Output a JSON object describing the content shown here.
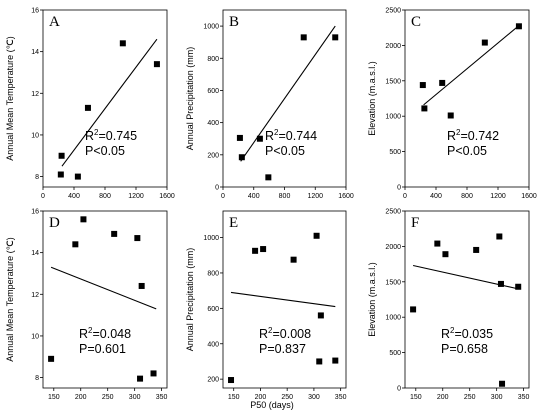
{
  "figure": {
    "xlabel": "P50 (days)"
  },
  "chart_data": [
    {
      "type": "scatter",
      "panel": "A",
      "ylabel": "Annual Mean Temperature (℃)",
      "xlim": [
        0,
        1600
      ],
      "ylim": [
        7.5,
        16
      ],
      "xticks": [
        0,
        400,
        800,
        1200,
        1600
      ],
      "yticks": [
        8,
        10,
        12,
        14,
        16
      ],
      "points": [
        [
          230,
          8.1
        ],
        [
          240,
          9.0
        ],
        [
          450,
          8.0
        ],
        [
          580,
          11.3
        ],
        [
          1030,
          14.4
        ],
        [
          1470,
          13.4
        ]
      ],
      "fit": [
        [
          245,
          8.5
        ],
        [
          1470,
          14.6
        ]
      ],
      "stats": [
        "R²=0.745",
        "P<0.05"
      ]
    },
    {
      "type": "scatter",
      "panel": "B",
      "ylabel": "Annual Precipitation (mm)",
      "xlim": [
        0,
        1600
      ],
      "ylim": [
        0,
        1100
      ],
      "xticks": [
        0,
        400,
        800,
        1200,
        1600
      ],
      "yticks": [
        0,
        200,
        400,
        600,
        800,
        1000
      ],
      "points": [
        [
          220,
          305
        ],
        [
          245,
          185
        ],
        [
          480,
          300
        ],
        [
          590,
          60
        ],
        [
          1050,
          930
        ],
        [
          1460,
          930
        ]
      ],
      "fit": [
        [
          230,
          160
        ],
        [
          1460,
          1000
        ]
      ],
      "stats": [
        "R²=0.744",
        "P<0.05"
      ]
    },
    {
      "type": "scatter",
      "panel": "C",
      "ylabel": "Elevation (m.a.s.l.)",
      "xlim": [
        0,
        1600
      ],
      "ylim": [
        0,
        2500
      ],
      "xticks": [
        0,
        400,
        800,
        1200,
        1600
      ],
      "yticks": [
        0,
        500,
        1000,
        1500,
        2000,
        2500
      ],
      "points": [
        [
          230,
          1440
        ],
        [
          250,
          1110
        ],
        [
          480,
          1470
        ],
        [
          590,
          1010
        ],
        [
          1030,
          2040
        ],
        [
          1470,
          2270
        ]
      ],
      "fit": [
        [
          240,
          1160
        ],
        [
          1470,
          2280
        ]
      ],
      "stats": [
        "R²=0.742",
        "P<0.05"
      ]
    },
    {
      "type": "scatter",
      "panel": "D",
      "ylabel": "Annual Mean Temperature (℃)",
      "xlim": [
        130,
        360
      ],
      "ylim": [
        7.5,
        16
      ],
      "xticks": [
        150,
        200,
        250,
        300,
        350
      ],
      "yticks": [
        8,
        10,
        12,
        14,
        16
      ],
      "points": [
        [
          145,
          8.9
        ],
        [
          190,
          14.4
        ],
        [
          205,
          15.6
        ],
        [
          262,
          14.9
        ],
        [
          305,
          14.7
        ],
        [
          310,
          7.95
        ],
        [
          313,
          12.4
        ],
        [
          335,
          8.2
        ]
      ],
      "fit": [
        [
          145,
          13.3
        ],
        [
          340,
          11.3
        ]
      ],
      "stats": [
        "R²=0.048",
        "P=0.601"
      ]
    },
    {
      "type": "scatter",
      "panel": "E",
      "ylabel": "Annual Precipitation (mm)",
      "xlim": [
        130,
        360
      ],
      "ylim": [
        150,
        1150
      ],
      "xticks": [
        150,
        200,
        250,
        300,
        350
      ],
      "yticks": [
        200,
        400,
        600,
        800,
        1000
      ],
      "points": [
        [
          145,
          195
        ],
        [
          190,
          925
        ],
        [
          205,
          935
        ],
        [
          262,
          875
        ],
        [
          305,
          1010
        ],
        [
          310,
          300
        ],
        [
          313,
          560
        ],
        [
          340,
          305
        ]
      ],
      "fit": [
        [
          145,
          690
        ],
        [
          340,
          610
        ]
      ],
      "stats": [
        "R²=0.008",
        "P=0.837"
      ]
    },
    {
      "type": "scatter",
      "panel": "F",
      "ylabel": "Elevation (m.a.s.l.)",
      "xlim": [
        130,
        360
      ],
      "ylim": [
        0,
        2500
      ],
      "xticks": [
        150,
        200,
        250,
        300,
        350
      ],
      "yticks": [
        0,
        500,
        1000,
        1500,
        2000,
        2500
      ],
      "points": [
        [
          145,
          1110
        ],
        [
          190,
          2040
        ],
        [
          205,
          1890
        ],
        [
          262,
          1950
        ],
        [
          305,
          2140
        ],
        [
          308,
          1470
        ],
        [
          310,
          60
        ],
        [
          340,
          1430
        ]
      ],
      "fit": [
        [
          145,
          1730
        ],
        [
          340,
          1400
        ]
      ],
      "stats": [
        "R²=0.035",
        "P=0.658"
      ]
    }
  ]
}
